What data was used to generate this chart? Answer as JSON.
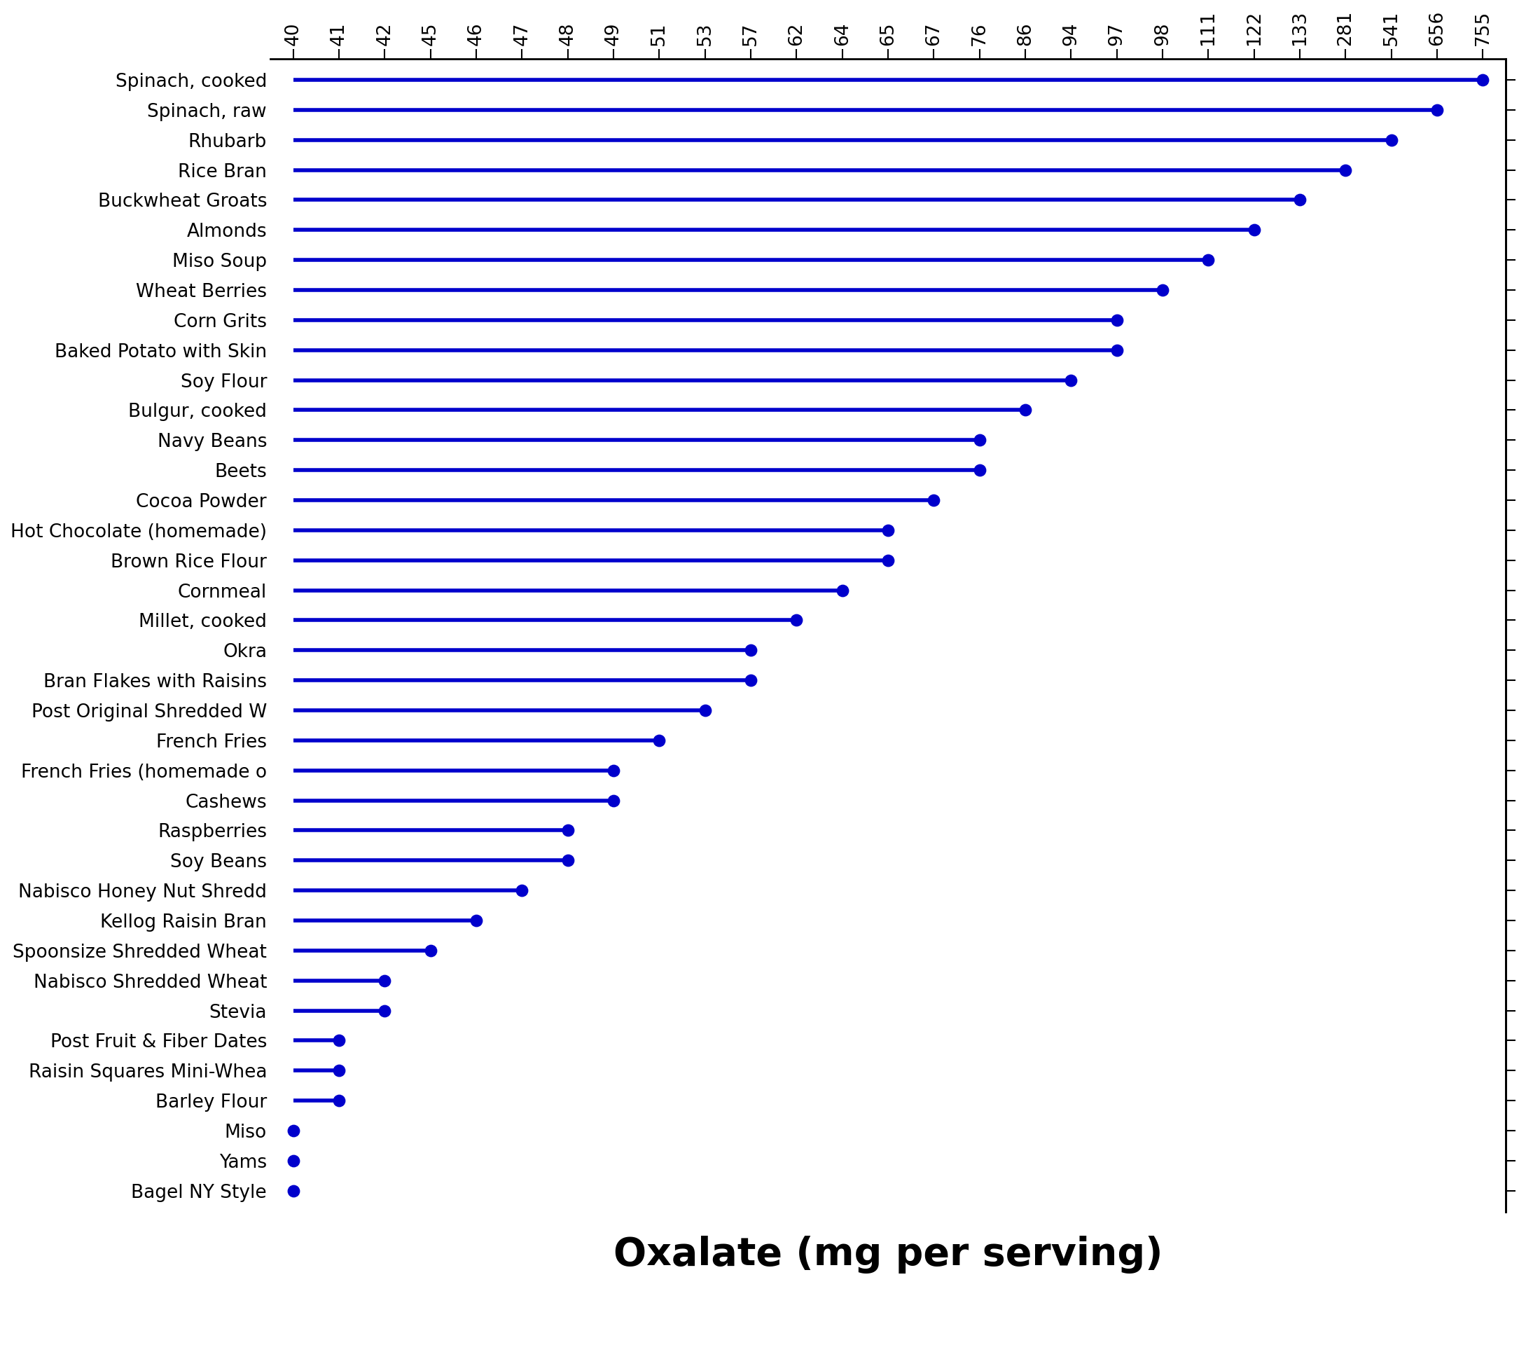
{
  "foods": [
    "Spinach, cooked",
    "Spinach, raw",
    "Rhubarb",
    "Rice Bran",
    "Buckwheat Groats",
    "Almonds",
    "Miso Soup",
    "Wheat Berries",
    "Corn Grits",
    "Baked Potato with Skin",
    "Soy Flour",
    "Bulgur, cooked",
    "Navy Beans",
    "Beets",
    "Cocoa Powder",
    "Hot Chocolate (homemade)",
    "Brown Rice Flour",
    "Cornmeal",
    "Millet, cooked",
    "Okra",
    "Bran Flakes with Raisins",
    "Post Original Shredded W",
    "French Fries",
    "French Fries (homemade o",
    "Cashews",
    "Raspberries",
    "Soy Beans",
    "Nabisco Honey Nut Shredd",
    "Kellog Raisin Bran",
    "Spoonsize Shredded Wheat",
    "Nabisco Shredded Wheat",
    "Stevia",
    "Post Fruit & Fiber Dates",
    "Raisin Squares Mini-Whea",
    "Barley Flour",
    "Miso",
    "Yams",
    "Bagel NY Style"
  ],
  "values": [
    755,
    656,
    541,
    281,
    133,
    122,
    111,
    98,
    97,
    97,
    94,
    86,
    76,
    76,
    67,
    65,
    65,
    64,
    62,
    57,
    57,
    53,
    51,
    49,
    49,
    48,
    48,
    47,
    46,
    45,
    42,
    42,
    41,
    41,
    41,
    40,
    40,
    40
  ],
  "xtick_labels": [
    "40",
    "41",
    "42",
    "45",
    "46",
    "47",
    "48",
    "49",
    "51",
    "53",
    "57",
    "62",
    "64",
    "65",
    "67",
    "76",
    "86",
    "94",
    "97",
    "98",
    "111",
    "122",
    "133",
    "281",
    "541",
    "656",
    "755"
  ],
  "xtick_values": [
    40,
    41,
    42,
    45,
    46,
    47,
    48,
    49,
    51,
    53,
    57,
    62,
    64,
    65,
    67,
    76,
    86,
    94,
    97,
    98,
    111,
    122,
    133,
    281,
    541,
    656,
    755
  ],
  "dot_color": "#0000cc",
  "line_color": "#0000cc",
  "xlabel": "Oxalate (mg per serving)",
  "xlabel_fontsize": 40,
  "tick_fontsize": 19,
  "label_fontsize": 19,
  "background_color": "#ffffff",
  "dot_size": 140,
  "line_width": 4.0
}
